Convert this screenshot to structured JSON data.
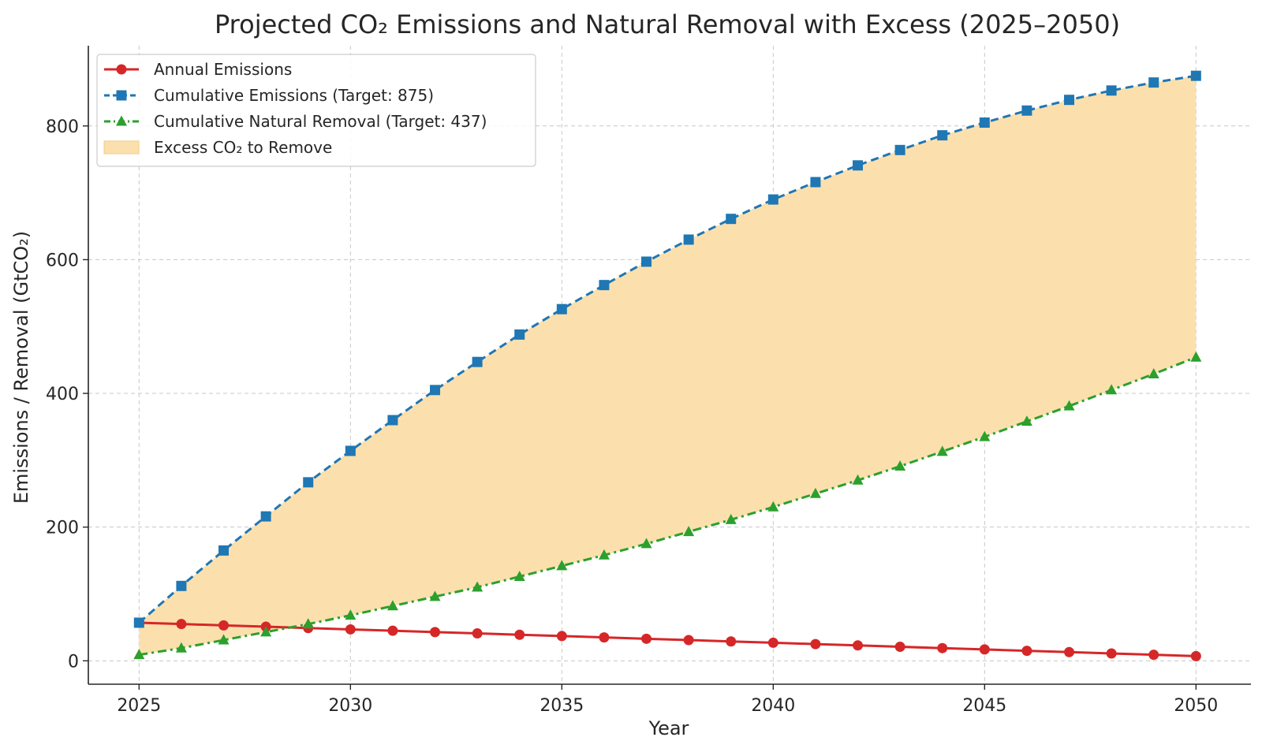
{
  "chart_data": {
    "type": "line",
    "title": "Projected CO₂ Emissions and Natural Removal with Excess (2025–2050)",
    "xlabel": "Year",
    "ylabel": "Emissions / Removal (GtCO₂)",
    "xlim": [
      2023.8,
      2051.3
    ],
    "ylim": [
      -35,
      920
    ],
    "x_ticks": [
      2025,
      2030,
      2035,
      2040,
      2045,
      2050
    ],
    "y_ticks": [
      0,
      200,
      400,
      600,
      800
    ],
    "grid": true,
    "legend_position": "top-left",
    "x": [
      2025,
      2026,
      2027,
      2028,
      2029,
      2030,
      2031,
      2032,
      2033,
      2034,
      2035,
      2036,
      2037,
      2038,
      2039,
      2040,
      2041,
      2042,
      2043,
      2044,
      2045,
      2046,
      2047,
      2048,
      2049,
      2050
    ],
    "series": [
      {
        "name": "Annual Emissions",
        "color": "#d62728",
        "line_style": "solid",
        "marker": "circle",
        "values": [
          57,
          55,
          53,
          51,
          49,
          47,
          45,
          43,
          41,
          39,
          37,
          35,
          33,
          31,
          29,
          27,
          25,
          23,
          21,
          19,
          17,
          15,
          13,
          11,
          9,
          7
        ]
      },
      {
        "name": "Cumulative Emissions (Target: 875)",
        "color": "#1f77b4",
        "line_style": "dashed",
        "marker": "square",
        "values": [
          57,
          112,
          165,
          216,
          267,
          314,
          360,
          405,
          447,
          488,
          526,
          562,
          597,
          630,
          661,
          690,
          716,
          741,
          764,
          786,
          805,
          823,
          839,
          853,
          865,
          875
        ]
      },
      {
        "name": "Cumulative Natural Removal (Target: 437)",
        "color": "#2ca02c",
        "line_style": "dashdot",
        "marker": "triangle",
        "values": [
          9,
          19,
          31,
          43,
          55,
          68,
          82,
          96,
          110,
          126,
          142,
          158,
          175,
          193,
          211,
          230,
          250,
          270,
          291,
          313,
          335,
          358,
          381,
          405,
          429,
          454
        ]
      }
    ],
    "fill": {
      "name": "Excess CO₂ to Remove",
      "between": [
        "Cumulative Emissions (Target: 875)",
        "Cumulative Natural Removal (Target: 437)"
      ],
      "color": "#fbe0ae"
    }
  }
}
